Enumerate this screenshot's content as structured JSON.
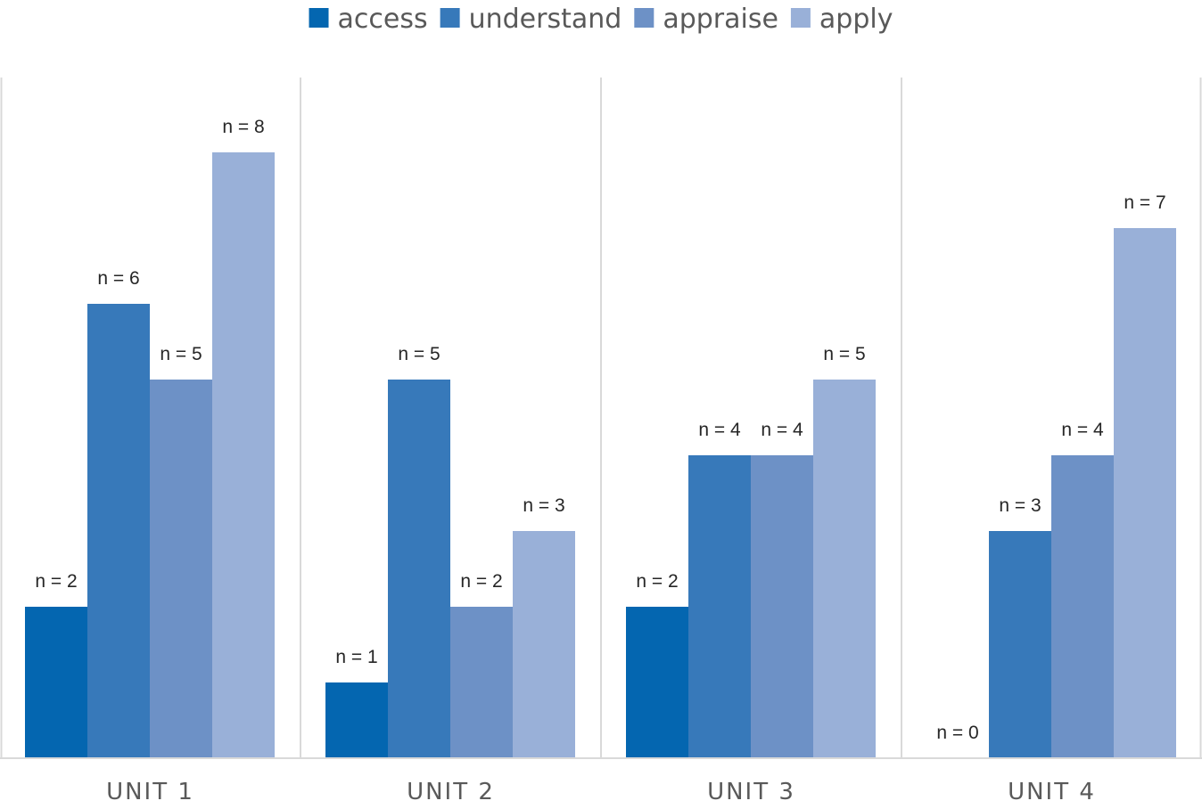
{
  "chart_data": {
    "type": "bar",
    "title": "",
    "xlabel": "",
    "ylabel": "",
    "categories": [
      "UNIT 1",
      "UNIT 2",
      "UNIT 3",
      "UNIT 4"
    ],
    "series": [
      {
        "name": "access",
        "color": "#0466B0",
        "values": [
          2,
          1,
          2,
          0
        ],
        "labels": [
          "n = 2",
          "n = 1",
          "n = 2",
          "n = 0"
        ]
      },
      {
        "name": "understand",
        "color": "#3779BA",
        "values": [
          6,
          5,
          4,
          3
        ],
        "labels": [
          "n = 6",
          "n = 5",
          "n = 4",
          "n = 3"
        ]
      },
      {
        "name": "appraise",
        "color": "#6D91C6",
        "values": [
          5,
          2,
          4,
          4
        ],
        "labels": [
          "n = 5",
          "n = 2",
          "n = 4",
          "n = 4"
        ]
      },
      {
        "name": "apply",
        "color": "#99B0D8",
        "values": [
          8,
          3,
          5,
          7
        ],
        "labels": [
          "n = 8",
          "n = 3",
          "n = 5",
          "n = 7"
        ]
      }
    ],
    "ylim": [
      0,
      8
    ],
    "legend_position": "top",
    "grid": false,
    "category_separators": true
  }
}
